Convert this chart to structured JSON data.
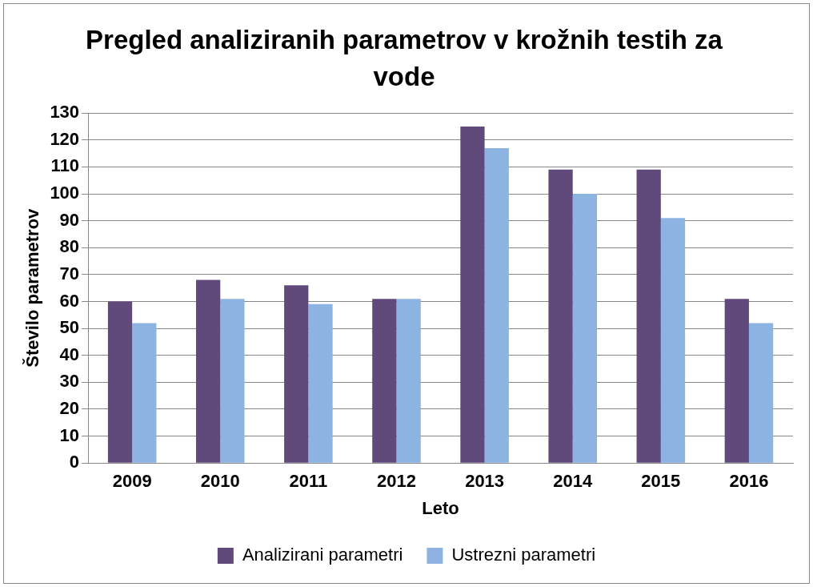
{
  "chart_data": {
    "type": "bar",
    "title": "Pregled analiziranih parametrov v krožnih testih za vode",
    "xlabel": "Leto",
    "ylabel": "Število parametrov",
    "categories": [
      "2009",
      "2010",
      "2011",
      "2012",
      "2013",
      "2014",
      "2015",
      "2016"
    ],
    "series": [
      {
        "name": "Analizirani parametri",
        "color": "#604a7b",
        "values": [
          60,
          68,
          66,
          61,
          125,
          109,
          109,
          61
        ]
      },
      {
        "name": "Ustrezni parametri",
        "color": "#8db3e2",
        "values": [
          52,
          61,
          59,
          61,
          117,
          100,
          91,
          52
        ]
      }
    ],
    "ylim": [
      0,
      130
    ],
    "yticks": [
      0,
      10,
      20,
      30,
      40,
      50,
      60,
      70,
      80,
      90,
      100,
      110,
      120,
      130
    ],
    "grid": "y",
    "legend": "bottom"
  }
}
